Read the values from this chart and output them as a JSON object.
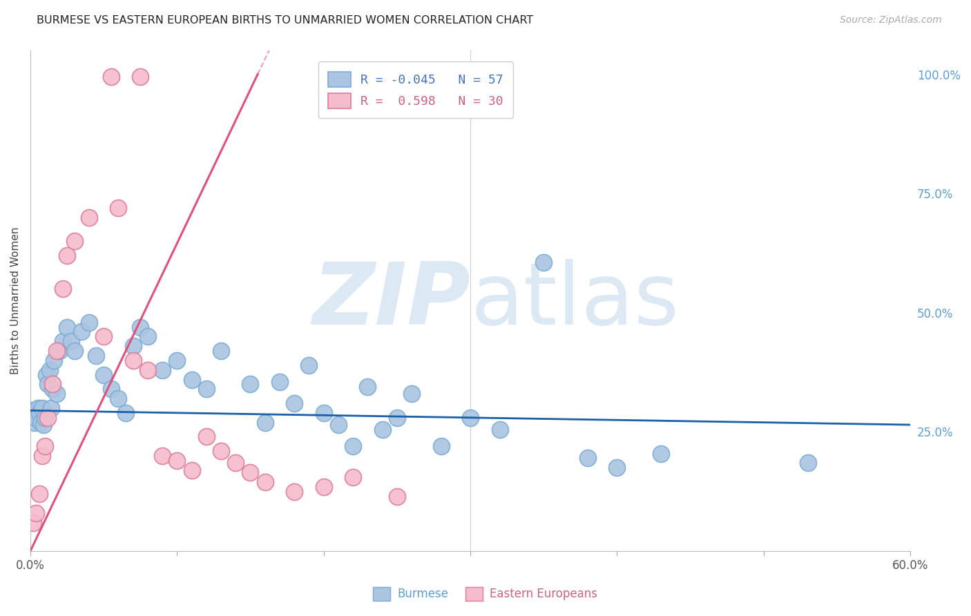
{
  "title": "BURMESE VS EASTERN EUROPEAN BIRTHS TO UNMARRIED WOMEN CORRELATION CHART",
  "source": "Source: ZipAtlas.com",
  "ylabel": "Births to Unmarried Women",
  "right_yticks": [
    0.0,
    0.25,
    0.5,
    0.75,
    1.0
  ],
  "right_yticklabels": [
    "",
    "25.0%",
    "50.0%",
    "75.0%",
    "100.0%"
  ],
  "legend_entry1": "R = -0.045   N = 57",
  "legend_entry2": "R =  0.598   N = 30",
  "legend_group1": "Burmese",
  "legend_group2": "Eastern Europeans",
  "blue_color": "#aac4e2",
  "blue_edge_color": "#7aacd4",
  "pink_color": "#f5bccb",
  "pink_edge_color": "#e07898",
  "blue_line_color": "#1a5fa8",
  "pink_line_color": "#e0507a",
  "watermark_zip": "ZIP",
  "watermark_atlas": "atlas",
  "watermark_color": "#dde8f5",
  "background_color": "#ffffff",
  "grid_color": "#e8e8e8",
  "xlim": [
    0.0,
    0.6
  ],
  "ylim": [
    0.0,
    1.05
  ],
  "xtick_positions": [
    0.0,
    0.1,
    0.2,
    0.3,
    0.4,
    0.5,
    0.6
  ],
  "burmese_x": [
    0.001,
    0.002,
    0.003,
    0.004,
    0.005,
    0.006,
    0.007,
    0.008,
    0.009,
    0.01,
    0.011,
    0.012,
    0.013,
    0.014,
    0.015,
    0.016,
    0.018,
    0.02,
    0.022,
    0.025,
    0.028,
    0.03,
    0.035,
    0.04,
    0.045,
    0.05,
    0.055,
    0.06,
    0.065,
    0.07,
    0.075,
    0.08,
    0.09,
    0.1,
    0.11,
    0.12,
    0.13,
    0.15,
    0.16,
    0.17,
    0.18,
    0.19,
    0.2,
    0.21,
    0.22,
    0.23,
    0.24,
    0.25,
    0.26,
    0.28,
    0.3,
    0.32,
    0.35,
    0.38,
    0.4,
    0.43,
    0.53
  ],
  "burmese_y": [
    0.285,
    0.295,
    0.27,
    0.28,
    0.3,
    0.29,
    0.27,
    0.3,
    0.265,
    0.28,
    0.37,
    0.35,
    0.38,
    0.3,
    0.34,
    0.4,
    0.33,
    0.42,
    0.44,
    0.47,
    0.44,
    0.42,
    0.46,
    0.48,
    0.41,
    0.37,
    0.34,
    0.32,
    0.29,
    0.43,
    0.47,
    0.45,
    0.38,
    0.4,
    0.36,
    0.34,
    0.42,
    0.35,
    0.27,
    0.355,
    0.31,
    0.39,
    0.29,
    0.265,
    0.22,
    0.345,
    0.255,
    0.28,
    0.33,
    0.22,
    0.28,
    0.255,
    0.605,
    0.195,
    0.175,
    0.205,
    0.185
  ],
  "eastern_x": [
    0.002,
    0.004,
    0.006,
    0.008,
    0.01,
    0.012,
    0.015,
    0.018,
    0.022,
    0.025,
    0.03,
    0.04,
    0.05,
    0.06,
    0.07,
    0.08,
    0.09,
    0.1,
    0.11,
    0.12,
    0.13,
    0.14,
    0.15,
    0.16,
    0.18,
    0.2,
    0.22,
    0.25,
    0.055,
    0.075
  ],
  "eastern_y": [
    0.06,
    0.08,
    0.12,
    0.2,
    0.22,
    0.28,
    0.35,
    0.42,
    0.55,
    0.62,
    0.65,
    0.7,
    0.45,
    0.72,
    0.4,
    0.38,
    0.2,
    0.19,
    0.17,
    0.24,
    0.21,
    0.185,
    0.165,
    0.145,
    0.125,
    0.135,
    0.155,
    0.115,
    0.995,
    0.995
  ],
  "pink_line_x0": 0.0,
  "pink_line_y0": 0.0,
  "pink_line_x1": 0.155,
  "pink_line_y1": 1.0,
  "blue_line_x0": 0.0,
  "blue_line_y0": 0.295,
  "blue_line_x1": 0.6,
  "blue_line_y1": 0.265
}
